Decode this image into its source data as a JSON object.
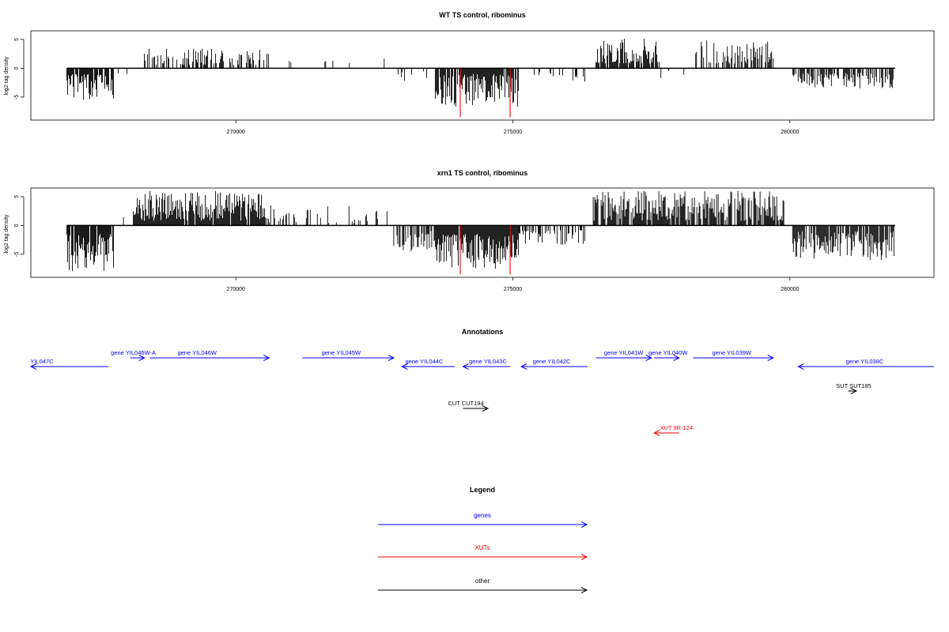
{
  "chart_data": [
    {
      "type": "bar",
      "title": "WT TS control, ribominus",
      "ylabel": "log2 tag density",
      "xlim": [
        266300,
        282600
      ],
      "ylim": [
        -9,
        6.5
      ],
      "x_ticks": [
        270000,
        275000,
        280000
      ],
      "y_ticks": [
        5,
        0,
        -5
      ],
      "grid": false,
      "baseline_segments": [
        [
          266950,
          281900
        ]
      ],
      "highlights": [
        {
          "x": 274050,
          "value": -8.5,
          "color": "#ff0000"
        },
        {
          "x": 274950,
          "value": -8.5,
          "color": "#ff0000"
        }
      ],
      "regions": [
        {
          "from": 266950,
          "to": 267800,
          "min": -5.5,
          "max": -1.0,
          "density": 0.75,
          "seed": 11
        },
        {
          "from": 267850,
          "to": 268050,
          "min": -1.6,
          "max": -0.6,
          "density": 0.15,
          "seed": 12
        },
        {
          "from": 268350,
          "to": 270600,
          "min": 0.6,
          "max": 3.5,
          "density": 0.5,
          "seed": 13
        },
        {
          "from": 270750,
          "to": 272800,
          "min": 0.3,
          "max": 2.5,
          "density": 0.06,
          "seed": 14
        },
        {
          "from": 272900,
          "to": 273500,
          "min": -2.5,
          "max": -0.5,
          "density": 0.15,
          "seed": 15
        },
        {
          "from": 273600,
          "to": 275100,
          "min": -7.0,
          "max": -1.0,
          "density": 0.9,
          "seed": 16
        },
        {
          "from": 275200,
          "to": 276300,
          "min": -2.5,
          "max": -0.5,
          "density": 0.12,
          "seed": 17
        },
        {
          "from": 276500,
          "to": 277600,
          "min": 0.8,
          "max": 5.2,
          "density": 0.85,
          "seed": 18
        },
        {
          "from": 277600,
          "to": 278300,
          "min": -2.0,
          "max": 2.0,
          "density": 0.08,
          "seed": 19
        },
        {
          "from": 278300,
          "to": 279700,
          "min": 0.8,
          "max": 5.0,
          "density": 0.6,
          "seed": 20
        },
        {
          "from": 280050,
          "to": 281900,
          "min": -3.5,
          "max": -0.8,
          "density": 0.6,
          "seed": 21
        }
      ]
    },
    {
      "type": "bar",
      "title": "xrn1 TS control, ribominus",
      "ylabel": "log2 tag density",
      "xlim": [
        266300,
        282600
      ],
      "ylim": [
        -9,
        6.5
      ],
      "x_ticks": [
        270000,
        275000,
        280000
      ],
      "y_ticks": [
        5,
        0,
        -5
      ],
      "grid": false,
      "baseline_segments": [
        [
          266950,
          276450
        ],
        [
          276450,
          281900
        ]
      ],
      "highlights": [
        {
          "x": 274050,
          "value": -8.5,
          "color": "#ff0000"
        },
        {
          "x": 274950,
          "value": -8.5,
          "color": "#ff0000"
        }
      ],
      "regions": [
        {
          "from": 266950,
          "to": 267800,
          "min": -8.0,
          "max": -1.5,
          "density": 0.9,
          "seed": 31
        },
        {
          "from": 267700,
          "to": 268100,
          "min": 0.5,
          "max": 2.5,
          "density": 0.08,
          "seed": 32
        },
        {
          "from": 268150,
          "to": 270600,
          "min": 0.8,
          "max": 6.0,
          "density": 0.95,
          "seed": 33
        },
        {
          "from": 270600,
          "to": 272750,
          "min": 0.4,
          "max": 3.5,
          "density": 0.25,
          "seed": 34
        },
        {
          "from": 272850,
          "to": 273600,
          "min": -4.5,
          "max": -1.0,
          "density": 0.6,
          "seed": 35
        },
        {
          "from": 273600,
          "to": 275100,
          "min": -7.5,
          "max": -1.5,
          "density": 0.95,
          "seed": 36
        },
        {
          "from": 275100,
          "to": 276300,
          "min": -3.5,
          "max": -0.8,
          "density": 0.55,
          "seed": 37
        },
        {
          "from": 276450,
          "to": 279900,
          "min": 0.8,
          "max": 6.0,
          "density": 0.8,
          "seed": 38
        },
        {
          "from": 280050,
          "to": 281900,
          "min": -6.0,
          "max": -1.0,
          "density": 0.85,
          "seed": 39
        }
      ]
    }
  ],
  "annotations": {
    "title": "Annotations",
    "items": [
      {
        "label": "YIL047C",
        "color": "#0000ff",
        "from": 266200,
        "to": 267700,
        "dir": "left",
        "row": 1,
        "label_at": 266500
      },
      {
        "label": "gene YIL046W-A",
        "color": "#0000ff",
        "from": 268100,
        "to": 268350,
        "dir": "right",
        "row": 0,
        "label_at": 268150
      },
      {
        "label": "gene YIL046W",
        "color": "#0000ff",
        "from": 268450,
        "to": 270600,
        "dir": "right",
        "row": 0,
        "label_at": 269300
      },
      {
        "label": "gene YIL045W",
        "color": "#0000ff",
        "from": 271200,
        "to": 272850,
        "dir": "right",
        "row": 0,
        "label_at": 271900
      },
      {
        "label": "gene YIL044C",
        "color": "#0000ff",
        "from": 273000,
        "to": 273950,
        "dir": "left",
        "row": 1,
        "label_at": 273400
      },
      {
        "label": "gene YIL043C",
        "color": "#0000ff",
        "from": 274100,
        "to": 274950,
        "dir": "left",
        "row": 1,
        "label_at": 274550
      },
      {
        "label": "gene YIL042C",
        "color": "#0000ff",
        "from": 275150,
        "to": 276350,
        "dir": "left",
        "row": 1,
        "label_at": 275700
      },
      {
        "label": "gene YIL041W",
        "color": "#0000ff",
        "from": 276500,
        "to": 277500,
        "dir": "right",
        "row": 0,
        "label_at": 277000
      },
      {
        "label": "gene YIL040W",
        "color": "#0000ff",
        "from": 277550,
        "to": 278000,
        "dir": "right",
        "row": 0,
        "label_at": 277800
      },
      {
        "label": "gene YIL039W",
        "color": "#0000ff",
        "from": 278250,
        "to": 279700,
        "dir": "right",
        "row": 0,
        "label_at": 278950
      },
      {
        "label": "gene YIL038C",
        "color": "#0000ff",
        "from": 280150,
        "to": 282700,
        "dir": "left",
        "row": 1,
        "label_at": 281350
      },
      {
        "label": "SUT SUT185",
        "color": "#000000",
        "from": 281050,
        "to": 281200,
        "dir": "right",
        "row": 2,
        "label_at": 281150
      },
      {
        "label": "CUT CUT194",
        "color": "#000000",
        "from": 274100,
        "to": 274550,
        "dir": "right",
        "row": 3,
        "label_at": 274150
      },
      {
        "label": "XUT 9R-124",
        "color": "#ff0000",
        "from": 277550,
        "to": 278000,
        "dir": "left",
        "row": 4,
        "label_at": 277950
      }
    ]
  },
  "legend": {
    "title": "Legend",
    "items": [
      {
        "label": "genes",
        "color": "#0000ff"
      },
      {
        "label": "XUTs",
        "color": "#ff0000"
      },
      {
        "label": "other",
        "color": "#000000"
      }
    ]
  }
}
